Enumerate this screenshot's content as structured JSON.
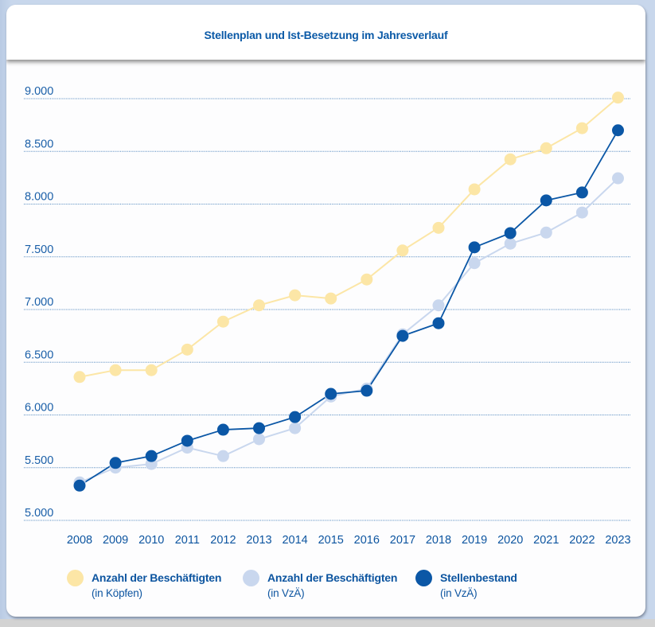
{
  "chart_data": {
    "type": "line",
    "title": "Stellenplan und Ist-Besetzung im Jahresverlauf",
    "xlabel": "",
    "ylabel": "",
    "x": [
      "2008",
      "2009",
      "2010",
      "2011",
      "2012",
      "2013",
      "2014",
      "2015",
      "2016",
      "2017",
      "2018",
      "2019",
      "2020",
      "2021",
      "2022",
      "2023"
    ],
    "ylim": [
      5000,
      9000
    ],
    "yticks": [
      5000,
      5500,
      6000,
      6500,
      7000,
      7500,
      8000,
      8500,
      9000
    ],
    "ytick_labels": [
      "5.000",
      "5.500",
      "6.000",
      "6.500",
      "7.000",
      "7.500",
      "8.000",
      "8.500",
      "9.000"
    ],
    "grid": "horizontal dotted",
    "legend_position": "bottom",
    "series": [
      {
        "name": "Anzahl der Beschäftigten",
        "subtitle": "(in Köpfen)",
        "color": "#fce6a6",
        "values": [
          6360,
          6425,
          6425,
          6620,
          6885,
          7040,
          7135,
          7105,
          7285,
          7560,
          7775,
          8140,
          8425,
          8530,
          8720,
          9010
        ]
      },
      {
        "name": "Anzahl der Beschäftigten",
        "subtitle": "(in VzÄ)",
        "color": "#c9d7ee",
        "values": [
          5360,
          5500,
          5535,
          5690,
          5610,
          5770,
          5875,
          6175,
          6250,
          6765,
          7040,
          7440,
          7625,
          7730,
          7920,
          8245
        ]
      },
      {
        "name": "Stellenbestand",
        "subtitle": "(in VzÄ)",
        "color": "#0b57a6",
        "values": [
          5330,
          5545,
          5610,
          5755,
          5860,
          5875,
          5980,
          6200,
          6230,
          6750,
          6870,
          7590,
          7725,
          8035,
          8110,
          8700
        ]
      }
    ]
  }
}
